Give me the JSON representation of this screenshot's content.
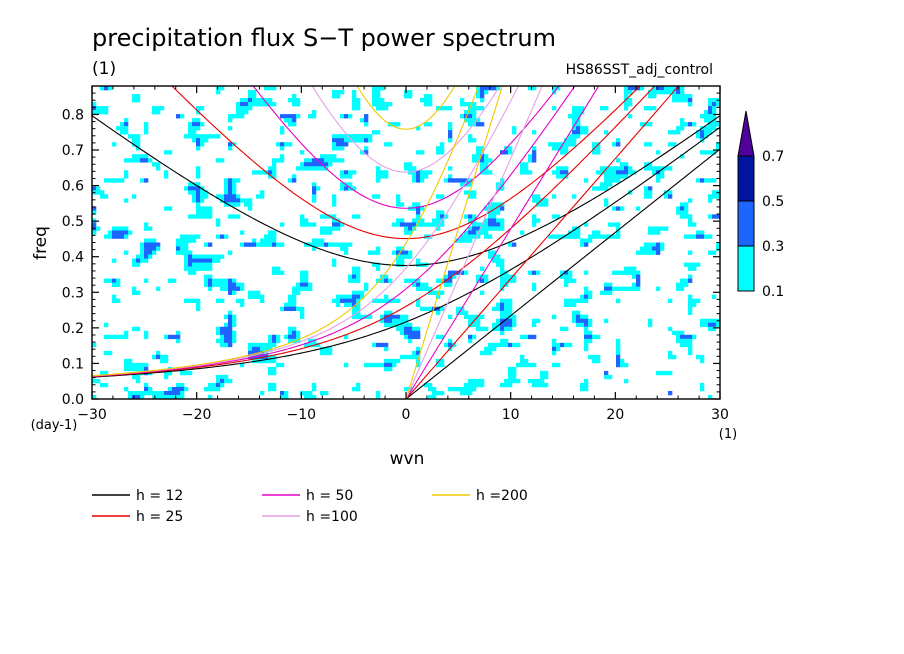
{
  "chart_data": {
    "type": "heatmap",
    "title": "precipitation flux S−T power spectrum",
    "title_unit": "(1)",
    "experiment": "HS86SST_adj_control",
    "xlabel": "wvn",
    "ylabel": "freq",
    "x_unit": "(1)",
    "y_unit": "(day-1)",
    "xlim": [
      -30,
      30
    ],
    "ylim": [
      0,
      0.88
    ],
    "x_ticks": [
      "-30",
      "-20",
      "-10",
      "0",
      "10",
      "20",
      "30"
    ],
    "y_ticks": [
      "0.0",
      "0.1",
      "0.2",
      "0.3",
      "0.4",
      "0.5",
      "0.6",
      "0.7",
      "0.8"
    ],
    "colorbar": {
      "levels": [
        "0.1",
        "0.3",
        "0.5",
        "0.7"
      ],
      "colors": [
        "#00ffff",
        "#1e64ff",
        "#0014a0",
        "#50009b"
      ]
    },
    "dispersion_curves": [
      {
        "label": "h = 12",
        "h": 12,
        "color": "#000000"
      },
      {
        "label": "h = 25",
        "h": 25,
        "color": "#e60000"
      },
      {
        "label": "h = 50",
        "h": 50,
        "color": "#e600c8"
      },
      {
        "label": "h =100",
        "h": 100,
        "color": "#e6a0e6"
      },
      {
        "label": "h =200",
        "h": 200,
        "color": "#f0c800"
      }
    ]
  }
}
